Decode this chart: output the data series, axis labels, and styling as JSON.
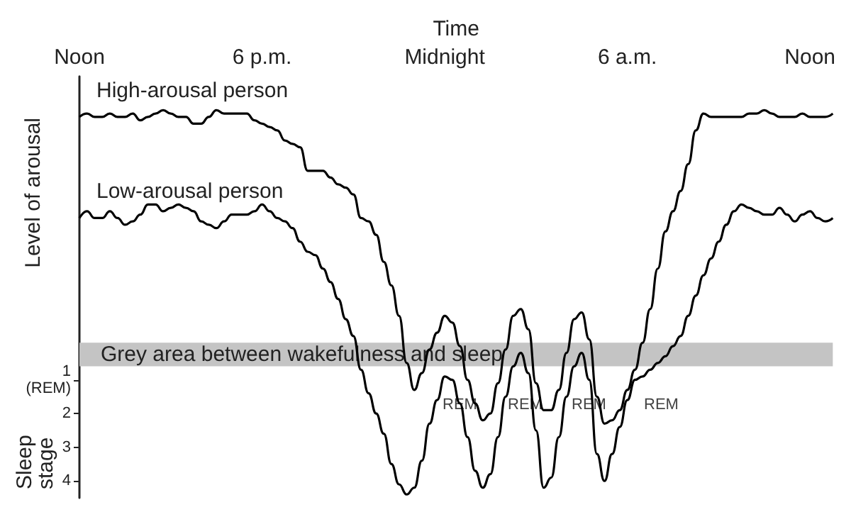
{
  "chart_data": {
    "type": "line",
    "xlabel": "Time",
    "ylabel": "Level of arousal",
    "categories": [
      "Noon",
      null,
      null,
      null,
      null,
      null,
      null,
      null,
      null,
      null,
      null,
      null,
      null,
      null,
      null,
      null,
      null,
      null,
      null,
      null,
      null,
      null,
      null,
      null,
      "6 p.m.",
      null,
      null,
      null,
      null,
      null,
      null,
      null,
      null,
      null,
      null,
      null,
      null,
      null,
      null,
      null,
      null,
      null,
      null,
      null,
      null,
      null,
      null,
      null,
      "Midnight",
      null,
      null,
      null,
      null,
      null,
      null,
      null,
      null,
      null,
      null,
      null,
      null,
      null,
      null,
      null,
      null,
      null,
      null,
      null,
      null,
      null,
      null,
      null,
      "6 a.m.",
      null,
      null,
      null,
      null,
      null,
      null,
      null,
      null,
      null,
      null,
      null,
      null,
      null,
      null,
      null,
      null,
      null,
      null,
      null,
      null,
      null,
      null,
      null,
      "Noon",
      null,
      null,
      null
    ],
    "ylim": [
      4.5,
      -8
    ],
    "yticks": [
      {
        "value": 1,
        "label": "1\n(REM)"
      },
      2,
      3,
      4
    ],
    "series": [
      {
        "name": "High-arousal person",
        "color": "#000000",
        "values": [
          -6.8,
          -6.9,
          -6.8,
          -6.8,
          -6.9,
          -6.8,
          -6.8,
          -6.9,
          -6.7,
          -6.8,
          -6.9,
          -7.0,
          -6.9,
          -6.8,
          -6.8,
          -6.6,
          -6.6,
          -6.8,
          -7.0,
          -6.9,
          -6.9,
          -6.9,
          -6.9,
          -6.7,
          -6.6,
          -6.5,
          -6.4,
          -6.1,
          -6.0,
          -5.9,
          -5.2,
          -5.2,
          -5.2,
          -5.0,
          -4.8,
          -4.7,
          -4.5,
          -3.8,
          -3.7,
          -3.3,
          -2.5,
          -1.8,
          -0.9,
          0.5,
          1.3,
          0.8,
          0.1,
          -0.4,
          -0.9,
          -0.7,
          0.0,
          1.0,
          1.7,
          2.2,
          2.0,
          1.1,
          0.1,
          -0.9,
          -1.1,
          -0.5,
          1.1,
          1.9,
          1.9,
          1.3,
          0.2,
          -0.8,
          -1.0,
          -0.2,
          1.5,
          2.3,
          2.2,
          1.9,
          1.3,
          0.7,
          -0.1,
          -1.1,
          -2.3,
          -3.4,
          -4.0,
          -4.6,
          -5.4,
          -6.4,
          -6.9,
          -6.8,
          -6.8,
          -6.8,
          -6.8,
          -6.8,
          -6.9,
          -6.9,
          -7.0,
          -6.9,
          -6.8,
          -6.8,
          -6.8,
          -6.9,
          -6.8,
          -6.8,
          -6.8,
          -6.9
        ]
      },
      {
        "name": "Low-arousal person",
        "color": "#000000",
        "values": [
          -3.8,
          -4.0,
          -3.8,
          -3.8,
          -4.0,
          -3.8,
          -3.6,
          -3.7,
          -3.9,
          -4.2,
          -4.2,
          -4.0,
          -4.1,
          -4.2,
          -4.1,
          -4.0,
          -3.7,
          -3.6,
          -3.5,
          -3.7,
          -3.9,
          -3.9,
          -3.9,
          -4.0,
          -4.2,
          -4.0,
          -3.8,
          -3.7,
          -3.5,
          -3.1,
          -2.8,
          -2.7,
          -2.3,
          -1.9,
          -1.4,
          -0.8,
          -0.3,
          0.7,
          1.4,
          2.0,
          2.6,
          3.5,
          4.1,
          4.4,
          4.2,
          3.4,
          2.3,
          1.6,
          0.9,
          1.0,
          1.7,
          2.7,
          3.7,
          4.2,
          3.8,
          2.7,
          1.5,
          0.6,
          0.2,
          0.8,
          2.5,
          4.2,
          3.9,
          2.7,
          1.5,
          0.6,
          0.2,
          1.0,
          3.2,
          4.0,
          3.2,
          2.4,
          1.6,
          1.0,
          0.9,
          0.7,
          0.5,
          0.3,
          0.0,
          -0.3,
          -0.9,
          -1.5,
          -2.1,
          -2.6,
          -3.1,
          -3.6,
          -4.0,
          -4.2,
          -4.1,
          -4.0,
          -3.9,
          -3.9,
          -4.1,
          -3.9,
          -3.7,
          -3.9,
          -4.0,
          -3.8,
          -3.7,
          -3.8
        ]
      }
    ],
    "bands": [
      {
        "axis": "y",
        "from": -0.1,
        "to": 0.6,
        "label": "Grey area between wakefulness and sleep",
        "color": "#c4c4c4"
      }
    ],
    "annotations": [
      "REM",
      "REM",
      "REM",
      "REM",
      "Sleep stage"
    ]
  }
}
